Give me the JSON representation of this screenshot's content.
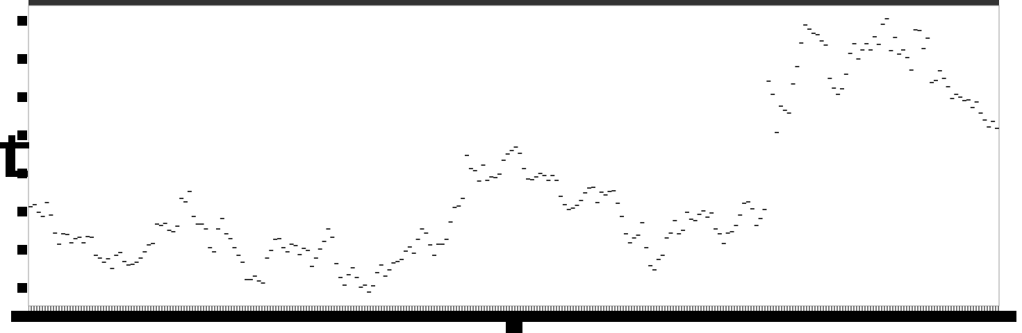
{
  "chart_data": {
    "type": "scatter",
    "color": "#333333",
    "ylim": [
      -26,
      407
    ],
    "yticks": [
      0,
      55,
      110,
      165,
      220,
      275,
      330,
      385
    ],
    "values": [
      117,
      120,
      109,
      103,
      123,
      105,
      79,
      63,
      78,
      77,
      65,
      71,
      73,
      65,
      74,
      73,
      47,
      43,
      37,
      42,
      28,
      47,
      51,
      38,
      33,
      34,
      37,
      43,
      52,
      62,
      64,
      92,
      90,
      93,
      83,
      81,
      89,
      129,
      124,
      139,
      103,
      92,
      92,
      85,
      58,
      52,
      85,
      100,
      78,
      71,
      58,
      47,
      37,
      12,
      12,
      17,
      10,
      7,
      43,
      54,
      70,
      71,
      58,
      52,
      63,
      61,
      48,
      57,
      54,
      31,
      43,
      56,
      67,
      85,
      73,
      35,
      15,
      4,
      19,
      29,
      15,
      1,
      4,
      -6,
      3,
      22,
      33,
      17,
      26,
      36,
      38,
      41,
      53,
      59,
      50,
      70,
      85,
      79,
      62,
      47,
      63,
      63,
      70,
      95,
      116,
      118,
      129,
      191,
      172,
      169,
      154,
      177,
      155,
      160,
      159,
      164,
      184,
      193,
      198,
      203,
      194,
      172,
      157,
      156,
      160,
      165,
      162,
      155,
      162,
      155,
      132,
      120,
      113,
      115,
      119,
      126,
      137,
      144,
      145,
      123,
      138,
      134,
      139,
      140,
      122,
      103,
      78,
      65,
      72,
      76,
      94,
      58,
      32,
      26,
      41,
      47,
      72,
      79,
      97,
      78,
      83,
      109,
      99,
      97,
      106,
      111,
      102,
      108,
      85,
      78,
      64,
      79,
      81,
      90,
      105,
      122,
      124,
      114,
      90,
      100,
      113,
      298,
      279,
      224,
      262,
      256,
      252,
      294,
      319,
      353,
      379,
      373,
      367,
      365,
      356,
      350,
      302,
      288,
      279,
      287,
      308,
      338,
      352,
      330,
      343,
      352,
      343,
      362,
      351,
      380,
      388,
      342,
      361,
      337,
      343,
      332,
      314,
      372,
      371,
      345,
      360,
      296,
      299,
      313,
      302,
      290,
      273,
      279,
      275,
      270,
      271,
      260,
      268,
      252,
      242,
      232,
      240,
      230
    ]
  }
}
